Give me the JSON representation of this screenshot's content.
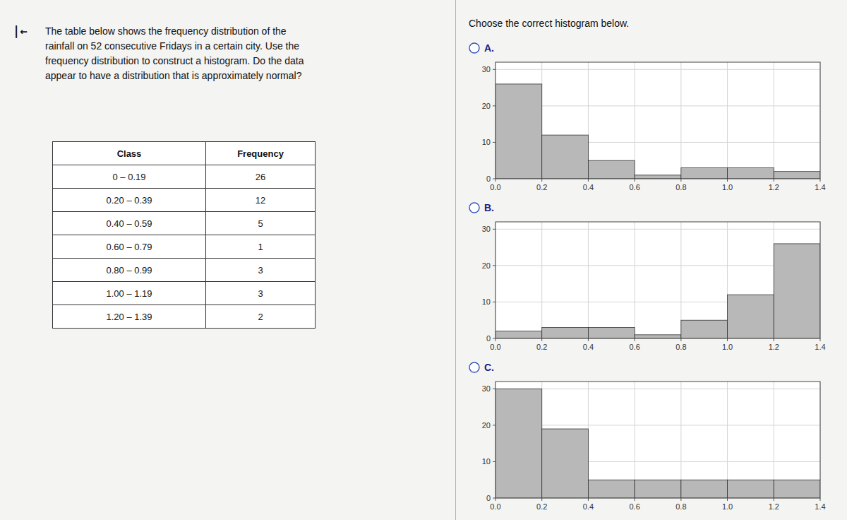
{
  "chart_data": [
    {
      "type": "table",
      "title": "The table below shows the frequency distribution of the\nrainfall on 52 consecutive Fridays in a certain city. Use the\nfrequency distribution to construct a histogram. Do the data\nappear to have a distribution that is approximately normal?",
      "annotations": [
        "|←"
      ],
      "columns": [
        "Class",
        "Frequency"
      ],
      "categories": [
        "0 – 0.19",
        "0.20 – 0.39",
        "0.40 – 0.59",
        "0.60 – 0.79",
        "0.80 – 0.99",
        "1.00 – 1.19",
        "1.20 – 1.39"
      ],
      "values": [
        26,
        12,
        5,
        1,
        3,
        3,
        2
      ]
    },
    {
      "type": "histogram",
      "title": "A.",
      "annotations": [
        "Choose the correct histogram below."
      ],
      "bins": [
        0,
        0.2,
        0.4,
        0.6,
        0.8,
        1.0,
        1.2,
        1.4
      ],
      "values": [
        26,
        12,
        5,
        1,
        3,
        3,
        2
      ],
      "color": "#b8b8b8",
      "xlim": [
        0,
        1.4
      ],
      "xticks": [
        {
          "value": 0,
          "label": "0.0"
        },
        0.2,
        0.4,
        0.6,
        0.8,
        {
          "value": 1,
          "label": "1.0"
        },
        1.2,
        1.4
      ],
      "ylim": [
        0,
        32
      ],
      "yticks": [
        0,
        10,
        20,
        30
      ],
      "grid": true
    },
    {
      "type": "histogram",
      "title": "B.",
      "bins": [
        0,
        0.2,
        0.4,
        0.6,
        0.8,
        1.0,
        1.2,
        1.4
      ],
      "values": [
        2,
        3,
        3,
        1,
        5,
        12,
        26
      ],
      "color": "#b8b8b8",
      "xlim": [
        0,
        1.4
      ],
      "xticks": [
        {
          "value": 0,
          "label": "0.0"
        },
        0.2,
        0.4,
        0.6,
        0.8,
        {
          "value": 1,
          "label": "1.0"
        },
        1.2,
        1.4
      ],
      "ylim": [
        0,
        32
      ],
      "yticks": [
        0,
        10,
        20,
        30
      ],
      "grid": true
    },
    {
      "type": "histogram",
      "title": "C.",
      "bins": [
        0,
        0.2,
        0.4,
        0.6,
        0.8,
        1.0,
        1.2,
        1.4
      ],
      "values": [
        30,
        19,
        5,
        5,
        5,
        5,
        5
      ],
      "color": "#b8b8b8",
      "xlim": [
        0,
        1.4
      ],
      "xticks": [
        {
          "value": 0,
          "label": "0.0"
        },
        0.2,
        0.4,
        0.6,
        0.8,
        {
          "value": 1,
          "label": "1.0"
        },
        1.2,
        1.4
      ],
      "ylim": [
        0,
        32
      ],
      "yticks": [
        0,
        10,
        20,
        30
      ],
      "grid": true
    }
  ]
}
